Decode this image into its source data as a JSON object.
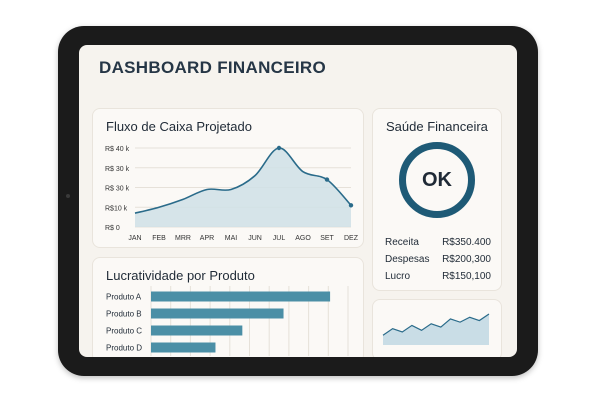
{
  "dashboard": {
    "title": "DASHBOARD FINANCEIRO"
  },
  "cashflow": {
    "title": "Fluxo de Caixa Projetado",
    "y_ticks": [
      "R$ 40 k",
      "R$ 30 k",
      "R$ 30 k",
      "R$10 k",
      "R$ 0"
    ],
    "x_ticks": [
      "JAN",
      "FEB",
      "MRR",
      "APR",
      "MAI",
      "JUN",
      "JUL",
      "AGO",
      "SET",
      "DEZ"
    ]
  },
  "health": {
    "title": "Saúde Financeira",
    "status": "OK",
    "metrics": [
      {
        "label": "Receita",
        "value": "R$350.400"
      },
      {
        "label": "Despesas",
        "value": "R$200,300"
      },
      {
        "label": "Lucro",
        "value": "R$150,100"
      }
    ]
  },
  "profit": {
    "title": "Lucratividade por Produto"
  },
  "colors": {
    "line": "#2a6b8a",
    "area": "#cfe0e6",
    "bar": "#4b8fa6",
    "ring": "#1e5a76",
    "spark_area": "#c9dde6"
  },
  "chart_data": [
    {
      "type": "area",
      "title": "Fluxo de Caixa Projetado",
      "categories": [
        "JAN",
        "FEB",
        "MRR",
        "APR",
        "MAI",
        "JUN",
        "JUL",
        "AGO",
        "SET",
        "DEZ"
      ],
      "values": [
        7,
        10,
        14,
        19,
        19,
        26,
        40,
        28,
        24,
        11
      ],
      "highlighted_points": [
        6,
        8,
        9
      ],
      "ylim": [
        0,
        40
      ],
      "grid": true
    },
    {
      "type": "bar",
      "orientation": "horizontal",
      "title": "Lucratividade por Produto",
      "categories": [
        "Produto A",
        "Produto B",
        "Produto C",
        "Produto D"
      ],
      "values": [
        100,
        74,
        51,
        36
      ],
      "xlim": [
        0,
        110
      ],
      "grid": true
    },
    {
      "type": "area",
      "values": [
        6,
        10,
        8,
        12,
        9,
        13,
        11,
        16,
        14,
        17,
        15,
        19
      ]
    }
  ]
}
